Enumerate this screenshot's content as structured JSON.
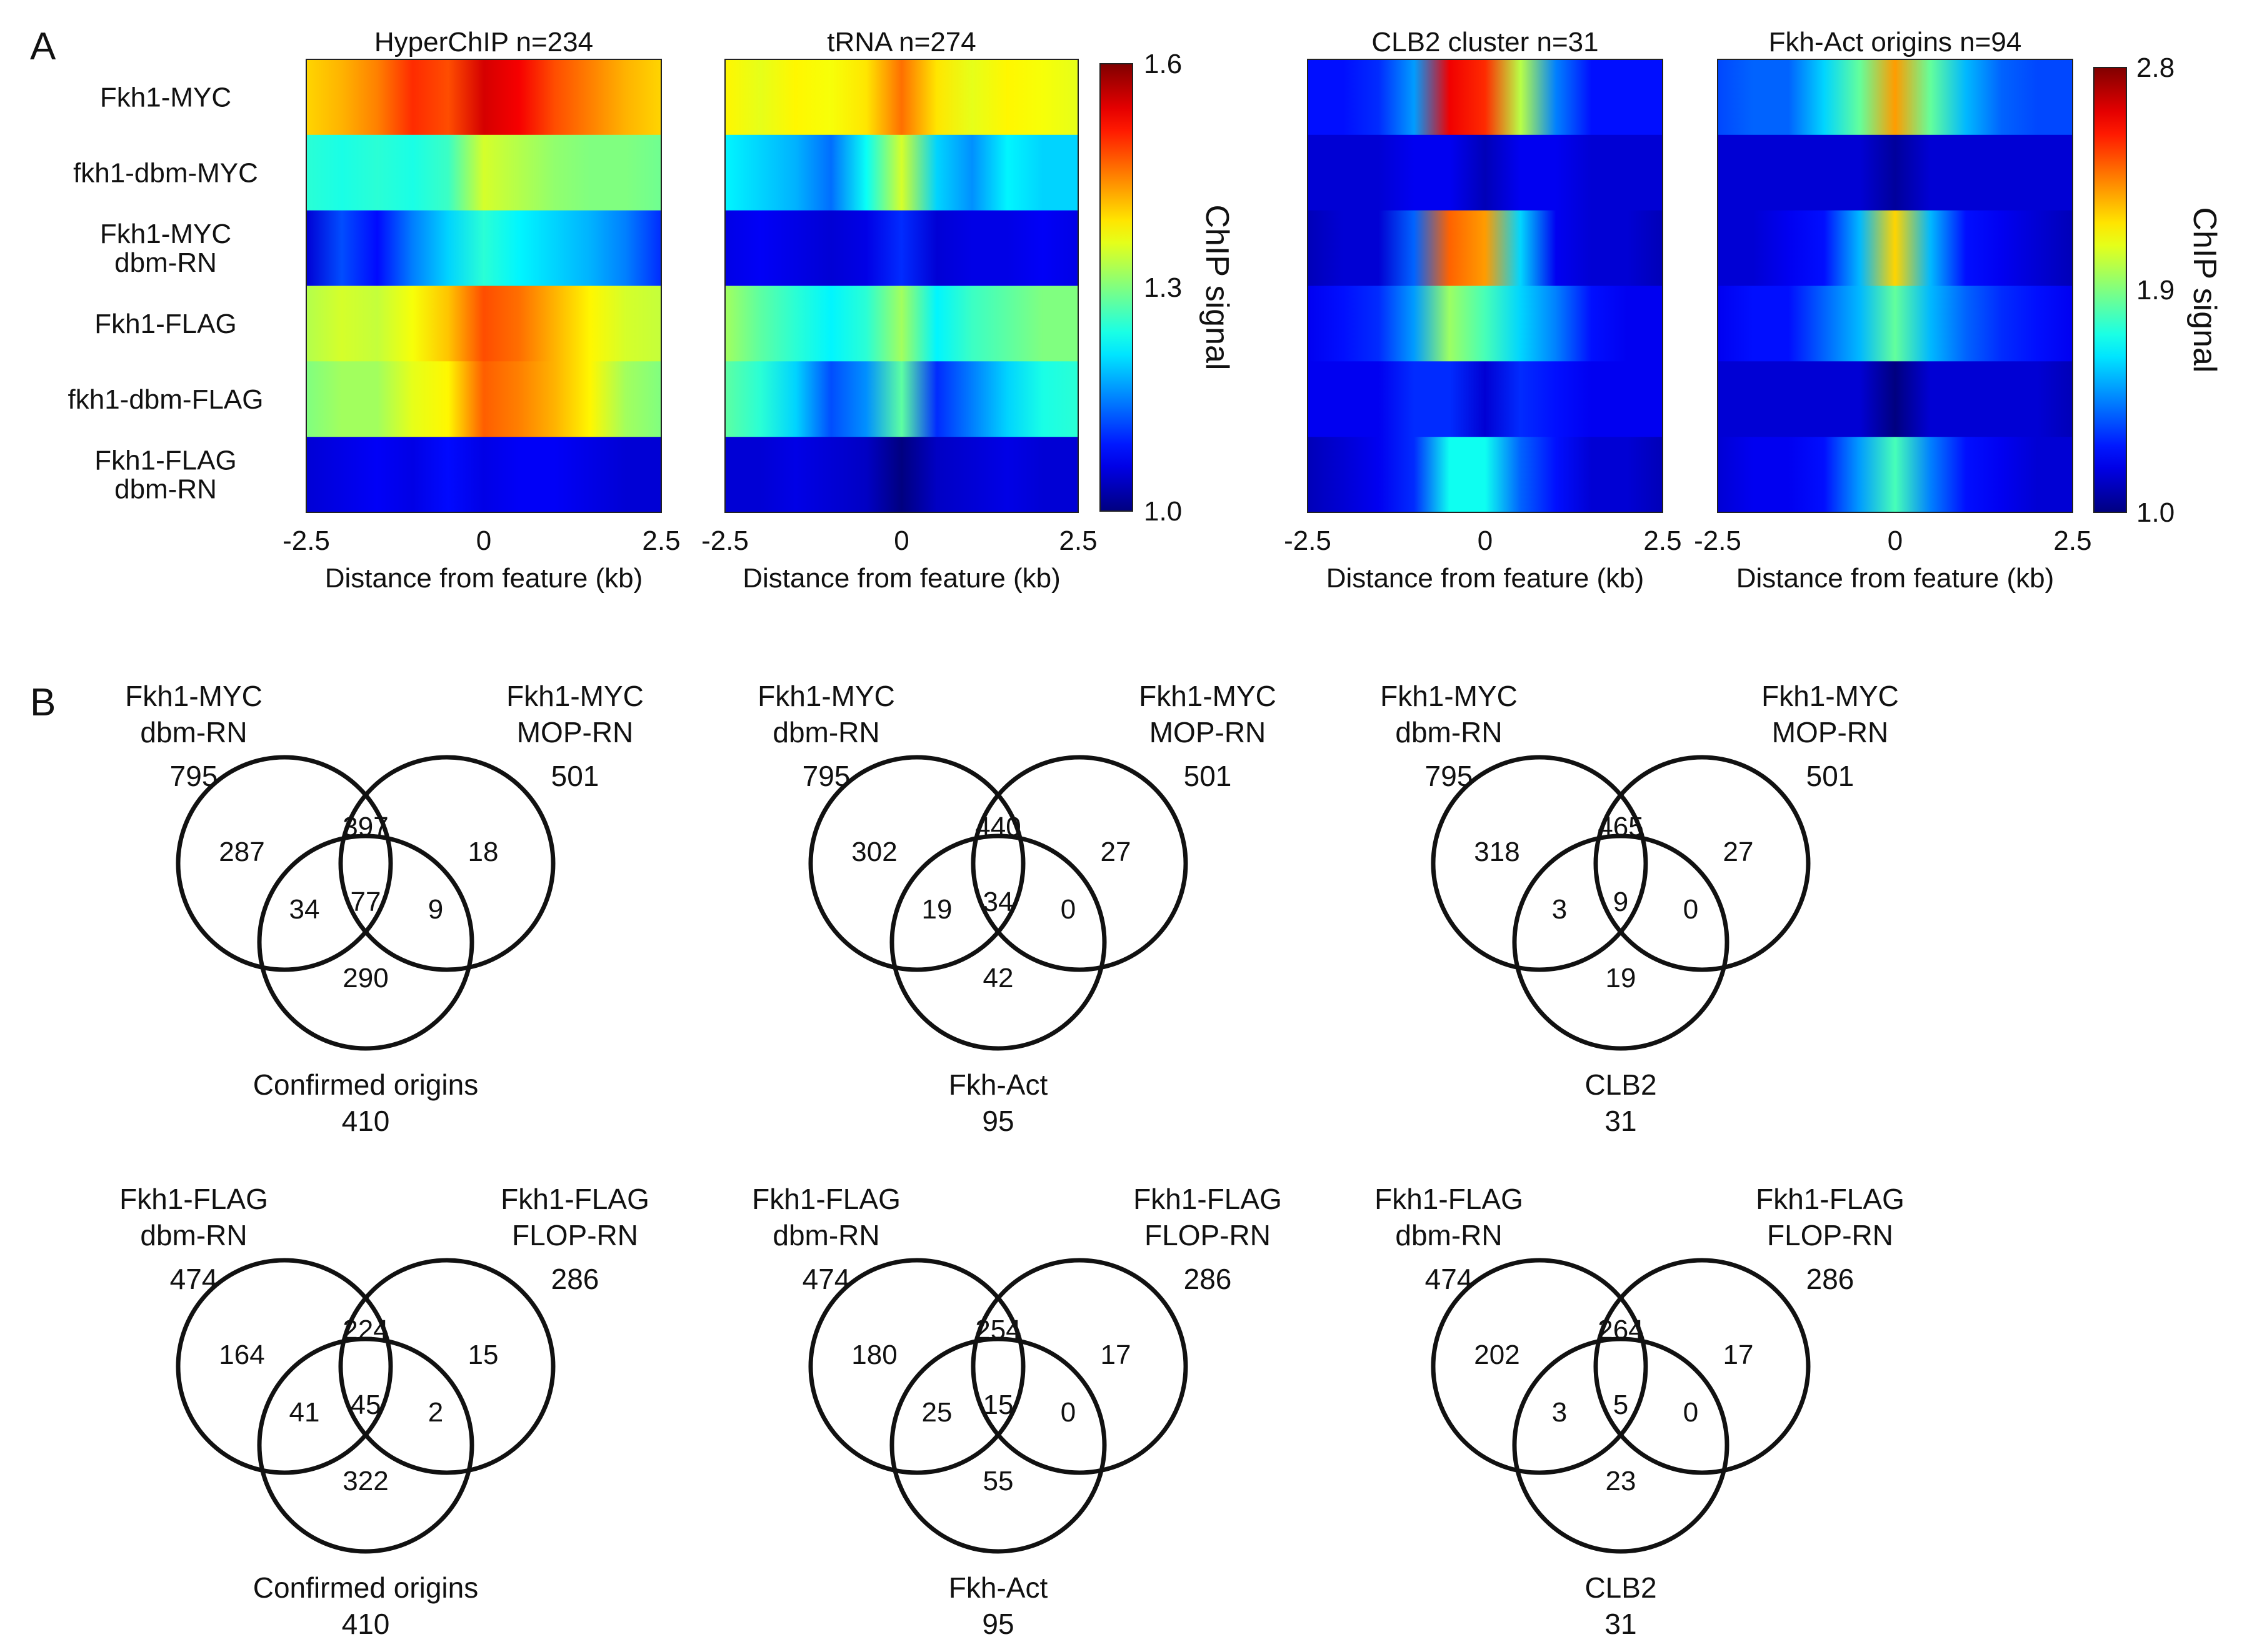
{
  "panel_labels": {
    "a": "A",
    "b": "B"
  },
  "heatmap_rows": [
    [
      "Fkh1-MYC"
    ],
    [
      "fkh1-dbm-MYC"
    ],
    [
      "Fkh1-MYC",
      "dbm-RN"
    ],
    [
      "Fkh1-FLAG"
    ],
    [
      "fkh1-dbm-FLAG"
    ],
    [
      "Fkh1-FLAG",
      "dbm-RN"
    ]
  ],
  "colorbars": [
    {
      "label": "ChIP signal",
      "ticks": [
        "1.6",
        "1.3",
        "1.0"
      ],
      "min": 1.0,
      "max": 1.6
    },
    {
      "label": "ChIP signal",
      "ticks": [
        "2.8",
        "1.9",
        "1.0"
      ],
      "min": 1.0,
      "max": 2.8
    }
  ],
  "chart_data": [
    {
      "type": "heatmap",
      "title": "HyperChIP n=234",
      "xlabel": "Distance from feature (kb)",
      "xticks": [
        "-2.5",
        "0",
        "2.5"
      ],
      "xlim": [
        -2.5,
        2.5
      ],
      "rows": [
        "Fkh1-MYC",
        "fkh1-dbm-MYC",
        "Fkh1-MYC dbm-RN",
        "Fkh1-FLAG",
        "fkh1-dbm-FLAG",
        "Fkh1-FLAG dbm-RN"
      ],
      "x": [
        -2.5,
        -2.0,
        -1.5,
        -1.0,
        -0.5,
        0.0,
        0.5,
        1.0,
        1.5,
        2.0,
        2.5
      ],
      "values": [
        [
          1.4,
          1.42,
          1.45,
          1.5,
          1.48,
          1.55,
          1.53,
          1.48,
          1.45,
          1.42,
          1.4
        ],
        [
          1.25,
          1.24,
          1.25,
          1.24,
          1.26,
          1.35,
          1.33,
          1.31,
          1.3,
          1.3,
          1.29
        ],
        [
          1.05,
          1.12,
          1.08,
          1.15,
          1.2,
          1.25,
          1.22,
          1.2,
          1.18,
          1.15,
          1.1
        ],
        [
          1.33,
          1.35,
          1.34,
          1.37,
          1.41,
          1.48,
          1.46,
          1.42,
          1.38,
          1.35,
          1.34
        ],
        [
          1.3,
          1.32,
          1.32,
          1.36,
          1.38,
          1.47,
          1.45,
          1.42,
          1.38,
          1.32,
          1.3
        ],
        [
          1.05,
          1.06,
          1.07,
          1.06,
          1.08,
          1.06,
          1.07,
          1.07,
          1.06,
          1.05,
          1.05
        ]
      ]
    },
    {
      "type": "heatmap",
      "title": "tRNA n=274",
      "xlabel": "Distance from feature (kb)",
      "xticks": [
        "-2.5",
        "0",
        "2.5"
      ],
      "xlim": [
        -2.5,
        2.5
      ],
      "rows": [
        "Fkh1-MYC",
        "fkh1-dbm-MYC",
        "Fkh1-MYC dbm-RN",
        "Fkh1-FLAG",
        "fkh1-dbm-FLAG",
        "Fkh1-FLAG dbm-RN"
      ],
      "x": [
        -2.5,
        -2.0,
        -1.5,
        -1.0,
        -0.5,
        0.0,
        0.5,
        1.0,
        1.5,
        2.0,
        2.5
      ],
      "values": [
        [
          1.38,
          1.36,
          1.38,
          1.37,
          1.39,
          1.46,
          1.39,
          1.36,
          1.38,
          1.37,
          1.36
        ],
        [
          1.22,
          1.2,
          1.18,
          1.14,
          1.23,
          1.35,
          1.2,
          1.16,
          1.22,
          1.2,
          1.2
        ],
        [
          1.06,
          1.07,
          1.06,
          1.05,
          1.06,
          1.1,
          1.05,
          1.06,
          1.06,
          1.07,
          1.06
        ],
        [
          1.32,
          1.28,
          1.25,
          1.22,
          1.25,
          1.32,
          1.22,
          1.26,
          1.28,
          1.3,
          1.3
        ],
        [
          1.28,
          1.25,
          1.2,
          1.12,
          1.16,
          1.28,
          1.1,
          1.15,
          1.2,
          1.24,
          1.25
        ],
        [
          1.05,
          1.05,
          1.06,
          1.05,
          1.04,
          1.0,
          1.04,
          1.05,
          1.06,
          1.05,
          1.05
        ]
      ]
    },
    {
      "type": "heatmap",
      "title": "CLB2 cluster n=31",
      "xlabel": "Distance from feature (kb)",
      "xticks": [
        "-2.5",
        "0",
        "2.5"
      ],
      "xlim": [
        -2.5,
        2.5
      ],
      "rows": [
        "Fkh1-MYC",
        "fkh1-dbm-MYC",
        "Fkh1-MYC dbm-RN",
        "Fkh1-FLAG",
        "fkh1-dbm-FLAG",
        "Fkh1-FLAG dbm-RN"
      ],
      "x": [
        -2.5,
        -2.0,
        -1.5,
        -1.0,
        -0.5,
        0.0,
        0.5,
        1.0,
        1.5,
        2.0,
        2.5
      ],
      "values": [
        [
          1.25,
          1.25,
          1.3,
          1.5,
          2.6,
          2.5,
          2.0,
          1.45,
          1.25,
          1.25,
          1.25
        ],
        [
          1.15,
          1.15,
          1.15,
          1.2,
          1.2,
          1.1,
          1.2,
          1.2,
          1.15,
          1.15,
          1.15
        ],
        [
          1.1,
          1.15,
          1.15,
          1.4,
          2.4,
          2.3,
          1.6,
          1.2,
          1.15,
          1.15,
          1.1
        ],
        [
          1.2,
          1.25,
          1.3,
          1.5,
          1.95,
          1.8,
          1.6,
          1.45,
          1.25,
          1.2,
          1.2
        ],
        [
          1.2,
          1.2,
          1.2,
          1.3,
          1.3,
          1.15,
          1.3,
          1.25,
          1.2,
          1.2,
          1.2
        ],
        [
          1.1,
          1.15,
          1.2,
          1.3,
          1.7,
          1.7,
          1.4,
          1.25,
          1.15,
          1.15,
          1.1
        ]
      ]
    },
    {
      "type": "heatmap",
      "title": "Fkh-Act origins n=94",
      "xlabel": "Distance from feature (kb)",
      "xticks": [
        "-2.5",
        "0",
        "2.5"
      ],
      "xlim": [
        -2.5,
        2.5
      ],
      "rows": [
        "Fkh1-MYC",
        "fkh1-dbm-MYC",
        "Fkh1-MYC dbm-RN",
        "Fkh1-FLAG",
        "fkh1-dbm-FLAG",
        "Fkh1-FLAG dbm-RN"
      ],
      "x": [
        -2.5,
        -2.0,
        -1.5,
        -1.0,
        -0.5,
        0.0,
        0.5,
        1.0,
        1.5,
        2.0,
        2.5
      ],
      "values": [
        [
          1.35,
          1.4,
          1.4,
          1.6,
          1.85,
          2.3,
          1.85,
          1.55,
          1.4,
          1.35,
          1.35
        ],
        [
          1.15,
          1.15,
          1.15,
          1.15,
          1.15,
          1.05,
          1.15,
          1.15,
          1.15,
          1.15,
          1.15
        ],
        [
          1.15,
          1.15,
          1.2,
          1.25,
          1.55,
          2.2,
          1.55,
          1.25,
          1.2,
          1.15,
          1.1
        ],
        [
          1.2,
          1.25,
          1.25,
          1.4,
          1.55,
          1.85,
          1.55,
          1.4,
          1.3,
          1.25,
          1.2
        ],
        [
          1.15,
          1.15,
          1.15,
          1.15,
          1.15,
          1.0,
          1.15,
          1.15,
          1.15,
          1.15,
          1.1
        ],
        [
          1.15,
          1.2,
          1.2,
          1.25,
          1.5,
          1.8,
          1.45,
          1.25,
          1.2,
          1.15,
          1.15
        ]
      ]
    }
  ],
  "venns": [
    {
      "left": [
        "Fkh1-MYC",
        "dbm-RN",
        "795"
      ],
      "right": [
        "Fkh1-MYC",
        "MOP-RN",
        "501"
      ],
      "bottom": [
        "Confirmed origins",
        "410"
      ],
      "regions": {
        "l": "287",
        "lr": "397",
        "r": "18",
        "lb": "34",
        "all": "77",
        "rb": "9",
        "b": "290"
      }
    },
    {
      "left": [
        "Fkh1-MYC",
        "dbm-RN",
        "795"
      ],
      "right": [
        "Fkh1-MYC",
        "MOP-RN",
        "501"
      ],
      "bottom": [
        "Fkh-Act",
        "95"
      ],
      "regions": {
        "l": "302",
        "lr": "440",
        "r": "27",
        "lb": "19",
        "all": "34",
        "rb": "0",
        "b": "42"
      }
    },
    {
      "left": [
        "Fkh1-MYC",
        "dbm-RN",
        "795"
      ],
      "right": [
        "Fkh1-MYC",
        "MOP-RN",
        "501"
      ],
      "bottom": [
        "CLB2",
        "31"
      ],
      "regions": {
        "l": "318",
        "lr": "465",
        "r": "27",
        "lb": "3",
        "all": "9",
        "rb": "0",
        "b": "19"
      }
    },
    {
      "left": [
        "Fkh1-FLAG",
        "dbm-RN",
        "474"
      ],
      "right": [
        "Fkh1-FLAG",
        "FLOP-RN",
        "286"
      ],
      "bottom": [
        "Confirmed origins",
        "410"
      ],
      "regions": {
        "l": "164",
        "lr": "224",
        "r": "15",
        "lb": "41",
        "all": "45",
        "rb": "2",
        "b": "322"
      }
    },
    {
      "left": [
        "Fkh1-FLAG",
        "dbm-RN",
        "474"
      ],
      "right": [
        "Fkh1-FLAG",
        "FLOP-RN",
        "286"
      ],
      "bottom": [
        "Fkh-Act",
        "95"
      ],
      "regions": {
        "l": "180",
        "lr": "254",
        "r": "17",
        "lb": "25",
        "all": "15",
        "rb": "0",
        "b": "55"
      }
    },
    {
      "left": [
        "Fkh1-FLAG",
        "dbm-RN",
        "474"
      ],
      "right": [
        "Fkh1-FLAG",
        "FLOP-RN",
        "286"
      ],
      "bottom": [
        "CLB2",
        "31"
      ],
      "regions": {
        "l": "202",
        "lr": "264",
        "r": "17",
        "lb": "3",
        "all": "5",
        "rb": "0",
        "b": "23"
      }
    }
  ]
}
